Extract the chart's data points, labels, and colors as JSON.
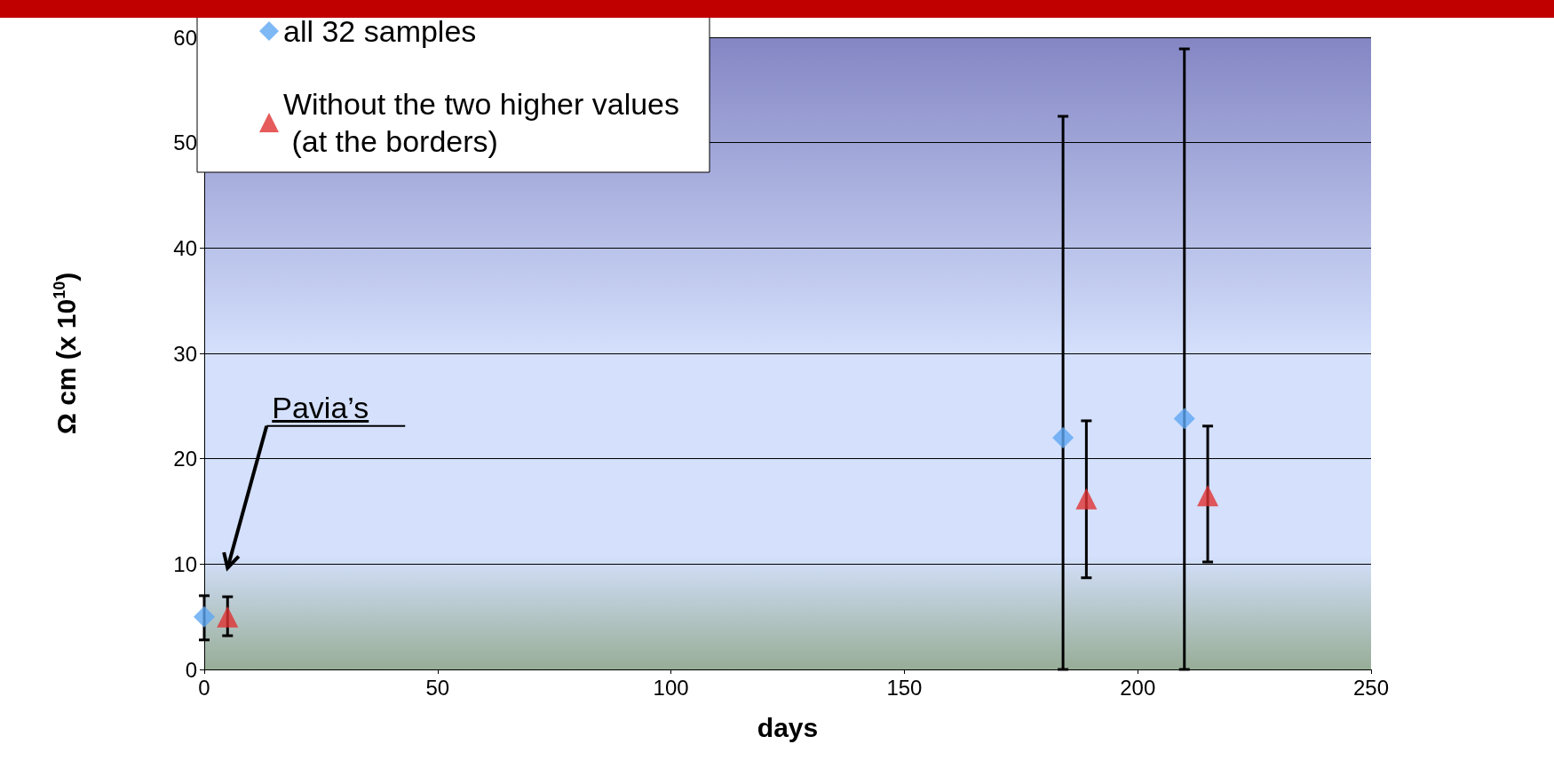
{
  "chart_data": {
    "type": "scatter",
    "xlabel": "days",
    "ylabel": "Ω cm (x 10$^{10}$)",
    "xlim": [
      0,
      250
    ],
    "xticks": [
      0,
      50,
      100,
      150,
      200,
      250
    ],
    "ylim": [
      0,
      60
    ],
    "yticks": [
      0,
      10,
      20,
      30,
      40,
      50,
      60
    ],
    "grid": "y",
    "legend": "top left",
    "series": [
      {
        "name": "all 32 samples",
        "color": "#5ea6f2",
        "marker": "diamond",
        "x": [
          0,
          184,
          210
        ],
        "values": [
          5.0,
          22.0,
          23.8
        ],
        "errors": [
          [
            2.8,
            7.0
          ],
          [
            0,
            52.5
          ],
          [
            0,
            58.9
          ]
        ]
      },
      {
        "name": "Without the two higher values (at the borders)",
        "color": "#e03232",
        "marker": "triangle",
        "x": [
          5,
          189,
          215
        ],
        "values": [
          5.0,
          16.2,
          16.5
        ],
        "errors": [
          [
            3.2,
            6.9
          ],
          [
            8.7,
            23.6
          ],
          [
            10.2,
            23.1
          ]
        ]
      }
    ],
    "annotations": [
      "Pavia’s"
    ]
  }
}
